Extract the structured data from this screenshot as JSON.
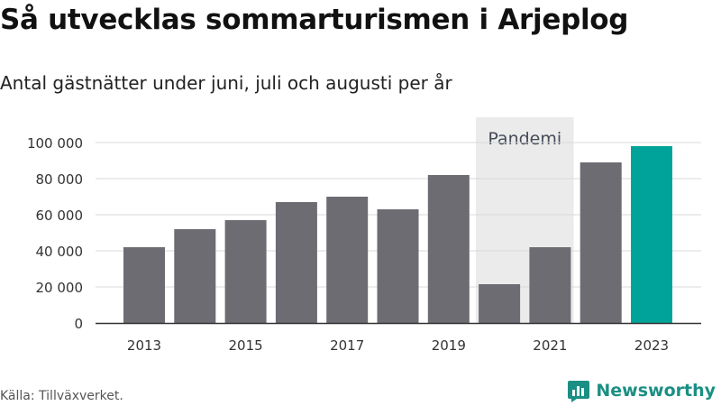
{
  "header": {
    "title": "Så utvecklas sommarturismen i Arjeplog",
    "subtitle": "Antal gästnätter under juni, juli och augusti per år"
  },
  "footer": {
    "source": "Källa: Tillväxverket.",
    "brand": "Newsworthy"
  },
  "colors": {
    "bar": "#6d6c72",
    "highlight": "#00a39a",
    "pandemic_band": "#ebebeb",
    "grid": "#d9d9d9",
    "brand": "#1b8f84"
  },
  "chart_data": {
    "type": "bar",
    "title": "Så utvecklas sommarturismen i Arjeplog",
    "subtitle": "Antal gästnätter under juni, juli och augusti per år",
    "categories": [
      "2013",
      "2014",
      "2015",
      "2016",
      "2017",
      "2018",
      "2019",
      "2020",
      "2021",
      "2022",
      "2023"
    ],
    "values": [
      42000,
      52000,
      57000,
      67000,
      70000,
      63000,
      82000,
      21500,
      42000,
      89000,
      98000
    ],
    "highlight_category": "2023",
    "x_tick_labels": [
      "2013",
      "2015",
      "2017",
      "2019",
      "2021",
      "2023"
    ],
    "y_ticks": [
      0,
      20000,
      40000,
      60000,
      80000,
      100000
    ],
    "y_tick_labels": [
      "0",
      "20 000",
      "40 000",
      "60 000",
      "80 000",
      "100 000"
    ],
    "ylim": [
      0,
      100000
    ],
    "grid": true,
    "annotation": {
      "label": "Pandemi",
      "categories": [
        "2020",
        "2021"
      ]
    }
  }
}
